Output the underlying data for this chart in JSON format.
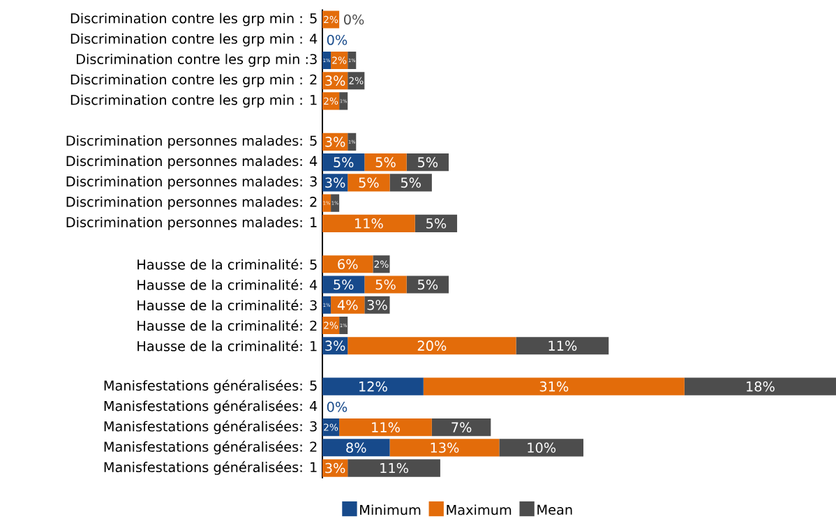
{
  "chart_data": {
    "type": "bar",
    "orientation": "horizontal",
    "stacked": true,
    "legend": "bottom",
    "categories": [
      "Discrimination contre les grp min : 5",
      "Discrimination contre les grp min : 4",
      "Discrimination contre les grp min :3",
      "Discrimination contre les grp min : 2",
      "Discrimination contre les grp min : 1",
      null,
      "Discrimination personnes malades: 5",
      "Discrimination personnes malades: 4",
      "Discrimination personnes malades: 3",
      "Discrimination personnes malades: 2",
      "Discrimination personnes malades: 1",
      null,
      "Hausse de la criminalité: 5",
      "Hausse de la criminalité: 4",
      "Hausse de la criminalité: 3",
      "Hausse de la criminalité: 2",
      "Hausse de la criminalité: 1",
      null,
      "Manisfestations généralisées: 5",
      "Manisfestations généralisées: 4",
      "Manisfestations généralisées: 3",
      "Manisfestations généralisées: 2",
      "Manisfestations généralisées: 1"
    ],
    "series": [
      {
        "name": "Minimum",
        "color": "#174a8b",
        "values": [
          null,
          0,
          1,
          null,
          null,
          null,
          null,
          5,
          3,
          null,
          null,
          null,
          null,
          5,
          1,
          null,
          3,
          null,
          12,
          0,
          2,
          8,
          null
        ],
        "value_labels": [
          null,
          "0%",
          "1%",
          null,
          null,
          null,
          null,
          "5%",
          "3%",
          null,
          null,
          null,
          null,
          "5%",
          "1%",
          null,
          "3%",
          null,
          "12%",
          "0%",
          "2%",
          "8%",
          null
        ]
      },
      {
        "name": "Maximum",
        "color": "#e36c0a",
        "values": [
          2,
          null,
          2,
          3,
          2,
          null,
          3,
          5,
          5,
          1,
          11,
          null,
          6,
          5,
          4,
          2,
          20,
          null,
          31,
          null,
          11,
          13,
          3
        ],
        "value_labels": [
          "2%",
          null,
          "2%",
          "3%",
          "2%",
          null,
          "3%",
          "5%",
          "5%",
          "1%",
          "11%",
          null,
          "6%",
          "5%",
          "4%",
          "2%",
          "20%",
          null,
          "31%",
          null,
          "11%",
          "13%",
          "3%"
        ]
      },
      {
        "name": "Mean",
        "color": "#4d4d4d",
        "values": [
          0,
          null,
          1,
          2,
          1,
          null,
          1,
          5,
          5,
          1,
          5,
          null,
          2,
          5,
          3,
          1,
          11,
          null,
          18,
          null,
          7,
          10,
          11
        ],
        "value_labels": [
          "0%",
          null,
          "1%",
          "2%",
          "1%",
          null,
          "1%",
          "5%",
          "5%",
          "1%",
          "5%",
          null,
          "2%",
          "5%",
          "3%",
          "1%",
          "11%",
          null,
          "18%",
          null,
          "7%",
          "10%",
          "11%"
        ]
      }
    ]
  }
}
